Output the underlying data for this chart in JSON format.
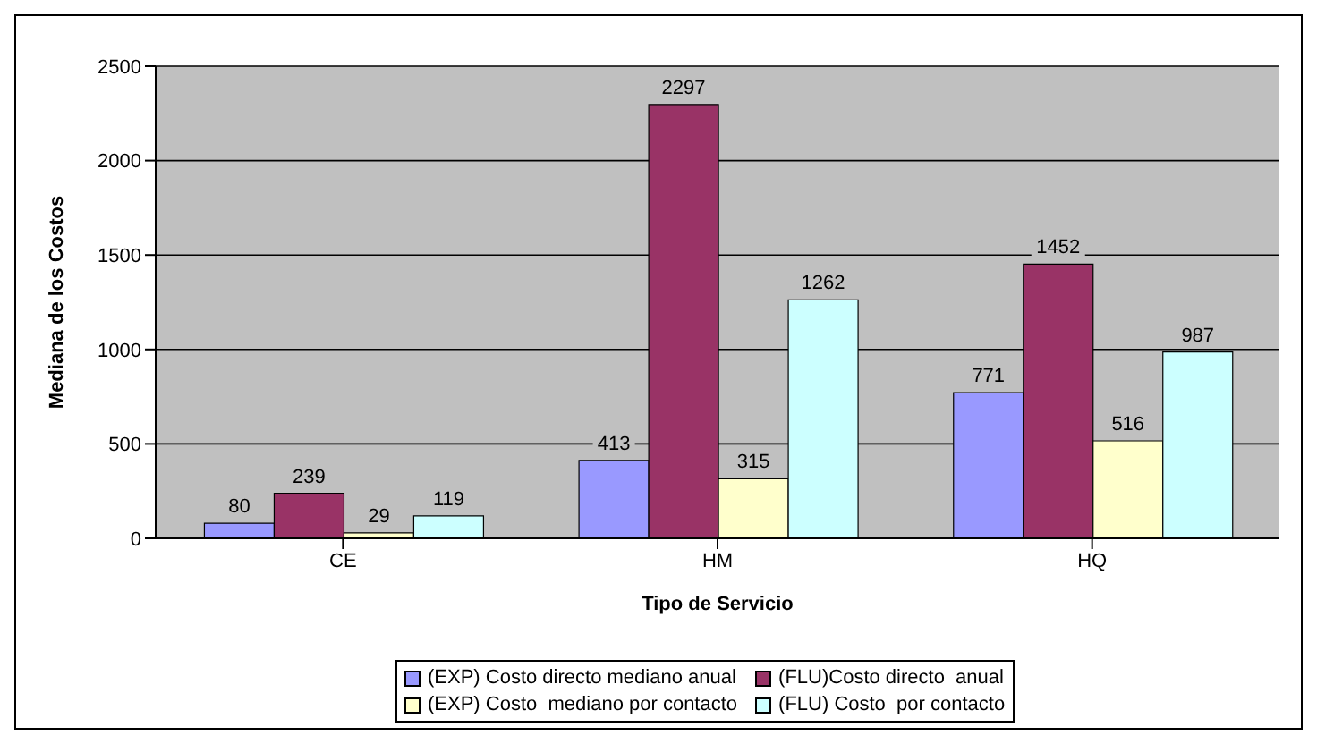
{
  "chart_data": {
    "type": "bar",
    "xlabel": "Tipo de Servicio",
    "ylabel": "Mediana de los Costos",
    "categories": [
      "CE",
      "HM",
      "HQ"
    ],
    "series": [
      {
        "name": "(EXP) Costo directo mediano anual",
        "color": "#9999ff",
        "values": [
          80,
          413,
          771
        ]
      },
      {
        "name": "(FLU)Costo directo  anual",
        "color": "#993366",
        "values": [
          239,
          2297,
          1452
        ]
      },
      {
        "name": "(EXP) Costo  mediano por contacto",
        "color": "#ffffcc",
        "values": [
          29,
          315,
          516
        ]
      },
      {
        "name": "(FLU) Costo  por contacto",
        "color": "#ccffff",
        "values": [
          119,
          1262,
          987
        ]
      }
    ],
    "ylim": [
      0,
      2500
    ],
    "yticks": [
      0,
      500,
      1000,
      1500,
      2000,
      2500
    ],
    "grid": "y",
    "legend": "bottom",
    "data_labels": true
  }
}
